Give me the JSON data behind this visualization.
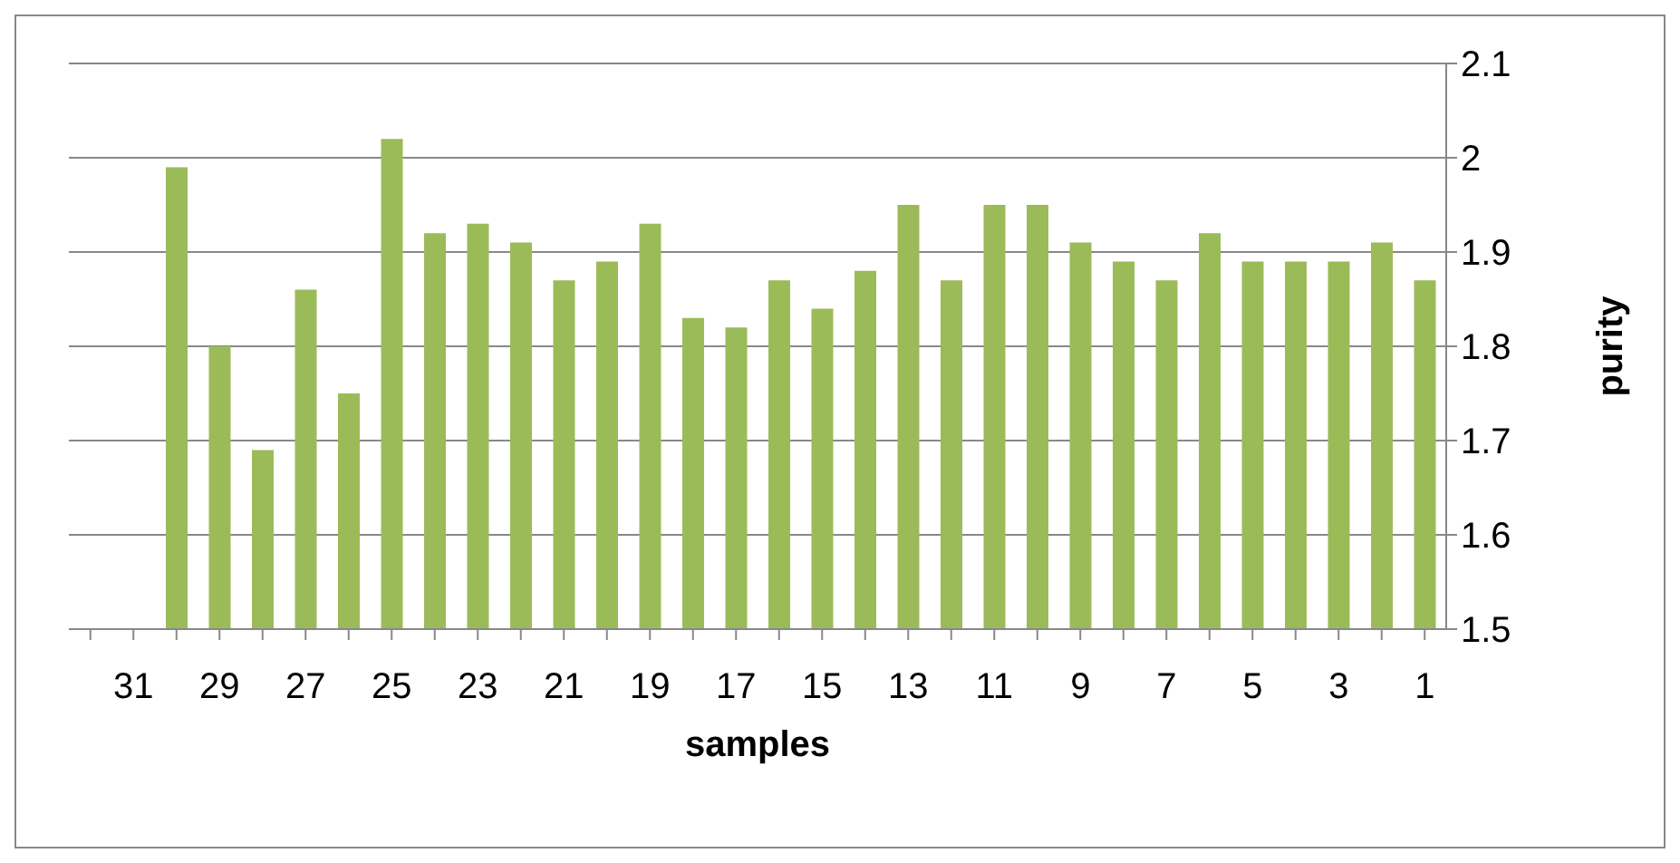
{
  "chart_data": {
    "type": "bar",
    "xlabel": "samples",
    "ylabel": "purity",
    "categories": [
      null,
      "31",
      null,
      "29",
      null,
      "27",
      null,
      "25",
      null,
      "23",
      null,
      "21",
      null,
      "19",
      null,
      "17",
      null,
      "15",
      null,
      "13",
      null,
      "11",
      null,
      "9",
      null,
      "7",
      null,
      "5",
      null,
      "3",
      null,
      "1"
    ],
    "values": [
      null,
      null,
      1.99,
      1.8,
      1.69,
      1.86,
      1.75,
      2.02,
      1.92,
      1.93,
      1.91,
      1.87,
      1.89,
      1.93,
      1.83,
      1.82,
      1.87,
      1.84,
      1.88,
      1.95,
      1.87,
      1.95,
      1.95,
      1.91,
      1.89,
      1.87,
      1.92,
      1.89,
      1.89,
      1.89,
      1.91,
      1.87
    ],
    "color": "#9bbb59",
    "ylim": [
      1.5,
      2.1
    ],
    "yticks": [
      1.5,
      1.6,
      1.7,
      1.8,
      1.9,
      2,
      2.1
    ],
    "grid": "y",
    "legend": false
  }
}
